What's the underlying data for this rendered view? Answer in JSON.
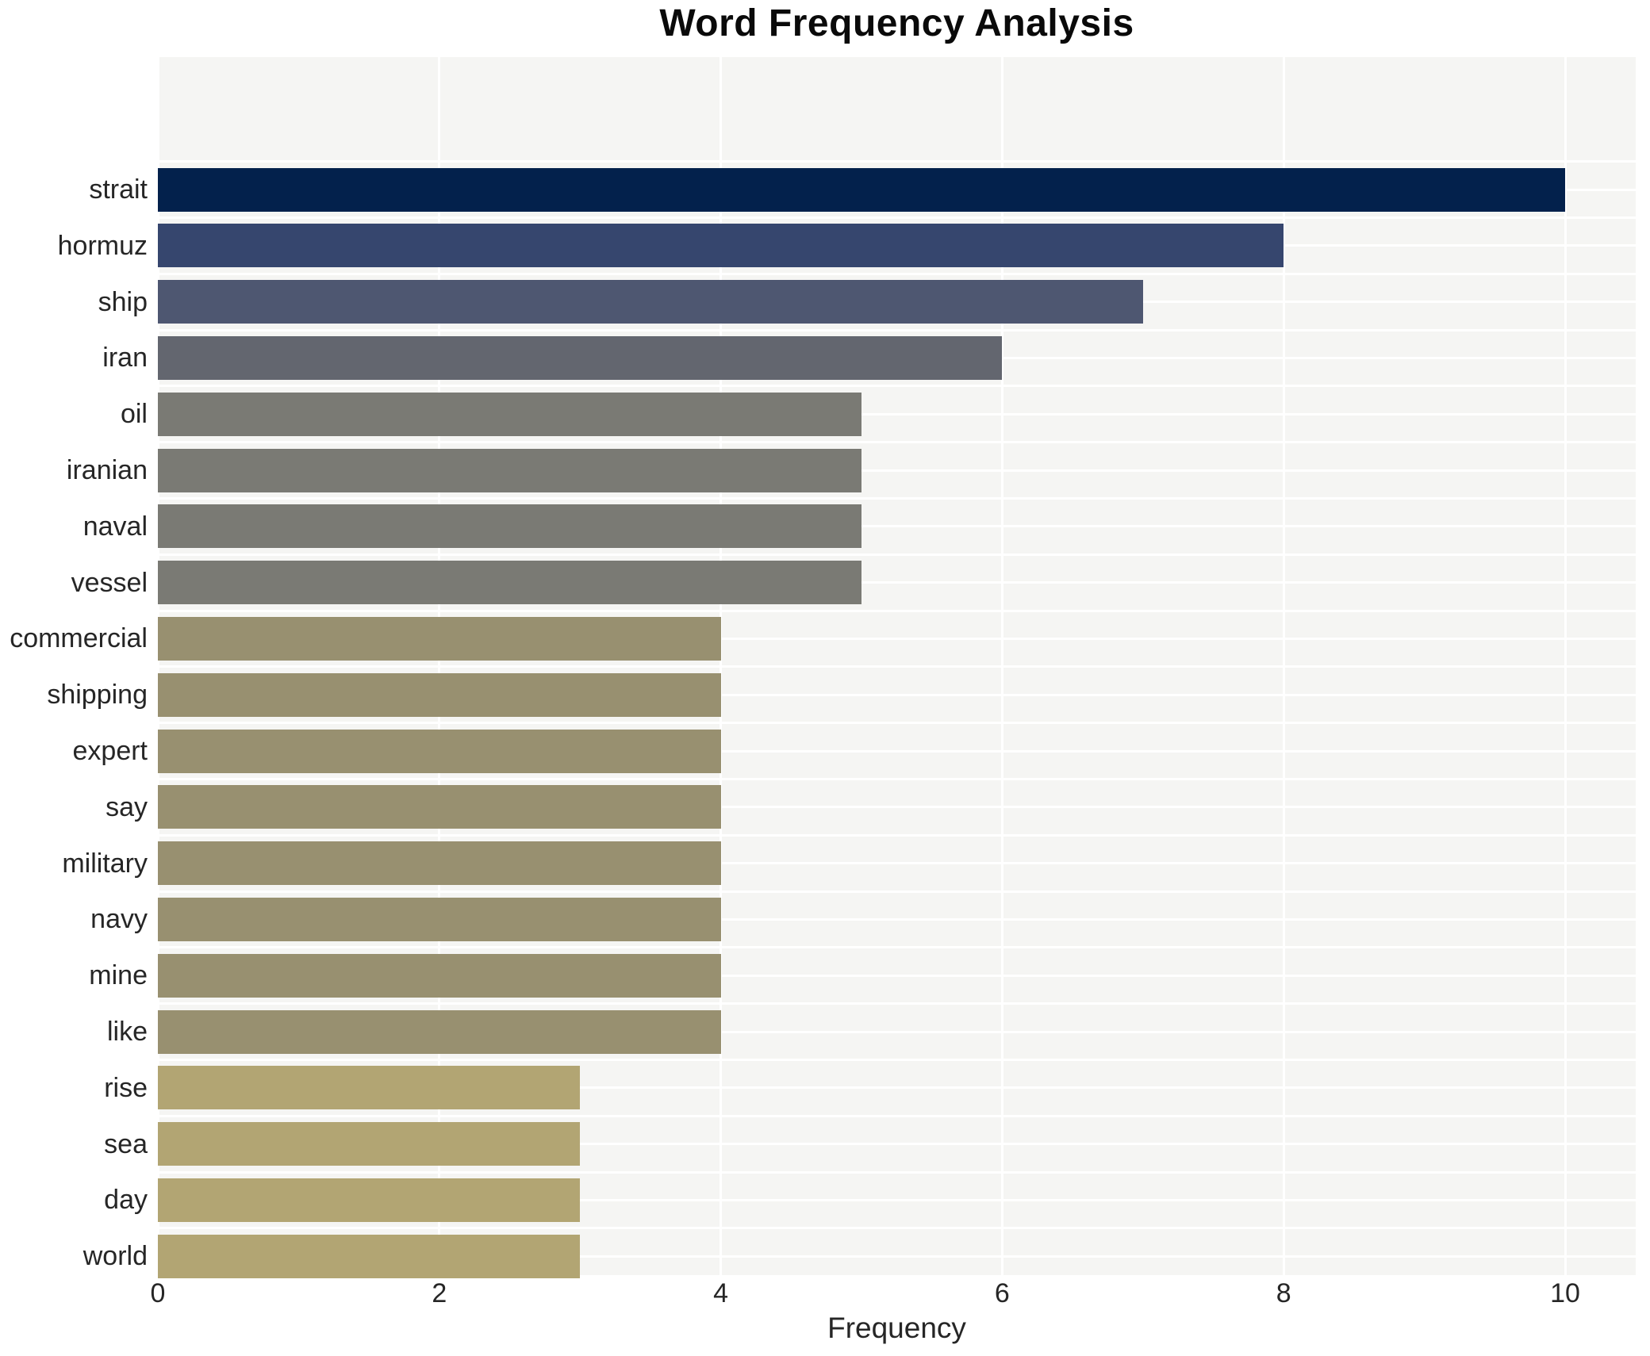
{
  "chart_data": {
    "type": "bar",
    "orientation": "horizontal",
    "title": "Word Frequency Analysis",
    "xlabel": "Frequency",
    "ylabel": "",
    "categories": [
      "strait",
      "hormuz",
      "ship",
      "iran",
      "oil",
      "iranian",
      "naval",
      "vessel",
      "commercial",
      "shipping",
      "expert",
      "say",
      "military",
      "navy",
      "mine",
      "like",
      "rise",
      "sea",
      "day",
      "world"
    ],
    "values": [
      10,
      8,
      7,
      6,
      5,
      5,
      5,
      5,
      4,
      4,
      4,
      4,
      4,
      4,
      4,
      4,
      3,
      3,
      3,
      3
    ],
    "bar_colors": [
      "#03214c",
      "#36466e",
      "#4e5771",
      "#63666f",
      "#7a7a74",
      "#7a7a74",
      "#7a7a74",
      "#7a7a74",
      "#989070",
      "#989070",
      "#989070",
      "#989070",
      "#989070",
      "#989070",
      "#989070",
      "#989070",
      "#b2a573",
      "#b2a573",
      "#b2a573",
      "#b2a573"
    ],
    "xticks": [
      0,
      2,
      4,
      6,
      8,
      10
    ],
    "xlim": [
      0,
      10.43
    ],
    "grid": true,
    "legend": false,
    "plot_background": "#f5f5f3",
    "grid_color": "#ffffff",
    "text_color": "#262626"
  }
}
